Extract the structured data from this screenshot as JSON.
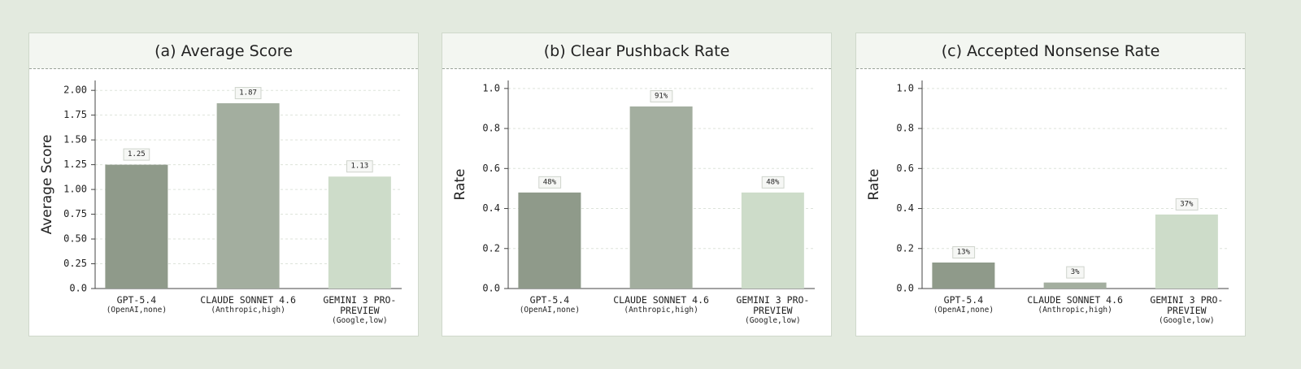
{
  "chart_data": [
    {
      "type": "bar",
      "title": "(a) Average Score",
      "ylabel": "Average Score",
      "categories": [
        "GPT-5.4",
        "CLAUDE SONNET 4.6",
        "GEMINI 3 PRO-PREVIEW"
      ],
      "category_notes": [
        "(OpenAI,none)",
        "(Anthropic,high)",
        "(Google,low)"
      ],
      "values": [
        1.25,
        1.87,
        1.13
      ],
      "value_labels": [
        "1.25",
        "1.87",
        "1.13"
      ],
      "colors": [
        "#8f9a8a",
        "#a3ae9f",
        "#cddcc9"
      ],
      "ylim": [
        0,
        2.1
      ],
      "yticks": [
        {
          "value": 0,
          "label": "0.0"
        },
        {
          "value": 0.25,
          "label": "0.25"
        },
        {
          "value": 0.5,
          "label": "0.50"
        },
        {
          "value": 0.75,
          "label": "0.75"
        },
        {
          "value": 1,
          "label": "1.00"
        },
        {
          "value": 1.25,
          "label": "1.25"
        },
        {
          "value": 1.5,
          "label": "1.50"
        },
        {
          "value": 1.75,
          "label": "1.75"
        },
        {
          "value": 2,
          "label": "2.00"
        }
      ],
      "grid": true
    },
    {
      "type": "bar",
      "title": "(b) Clear Pushback Rate",
      "ylabel": "Rate",
      "categories": [
        "GPT-5.4",
        "CLAUDE SONNET 4.6",
        "GEMINI 3 PRO-PREVIEW"
      ],
      "category_notes": [
        "(OpenAI,none)",
        "(Anthropic,high)",
        "(Google,low)"
      ],
      "values": [
        0.48,
        0.91,
        0.48
      ],
      "value_labels": [
        "48%",
        "91%",
        "48%"
      ],
      "colors": [
        "#8f9a8a",
        "#a3ae9f",
        "#cddcc9"
      ],
      "ylim": [
        0,
        1.04
      ],
      "yticks": [
        {
          "value": 0,
          "label": "0.0"
        },
        0.2,
        0.4,
        0.6,
        0.8,
        {
          "value": 1,
          "label": "1.0"
        }
      ],
      "grid": true
    },
    {
      "type": "bar",
      "title": "(c) Accepted Nonsense Rate",
      "ylabel": "Rate",
      "categories": [
        "GPT-5.4",
        "CLAUDE SONNET 4.6",
        "GEMINI 3 PRO-PREVIEW"
      ],
      "category_notes": [
        "(OpenAI,none)",
        "(Anthropic,high)",
        "(Google,low)"
      ],
      "values": [
        0.13,
        0.03,
        0.37
      ],
      "value_labels": [
        "13%",
        "3%",
        "37%"
      ],
      "colors": [
        "#8f9a8a",
        "#a3ae9f",
        "#cddcc9"
      ],
      "ylim": [
        0,
        1.04
      ],
      "yticks": [
        {
          "value": 0,
          "label": "0.0"
        },
        0.2,
        0.4,
        0.6,
        0.8,
        {
          "value": 1,
          "label": "1.0"
        }
      ],
      "grid": true
    }
  ]
}
